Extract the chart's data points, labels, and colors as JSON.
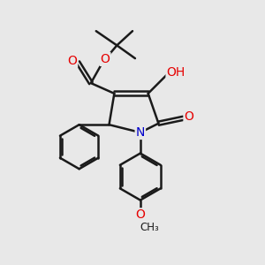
{
  "background_color": "#e8e8e8",
  "bond_color": "#1a1a1a",
  "bond_width": 1.8,
  "atom_colors": {
    "C": "#1a1a1a",
    "O": "#e60000",
    "N": "#0000cc",
    "H": "#5a8a8a"
  },
  "figsize": [
    3.0,
    3.0
  ],
  "dpi": 100,
  "xlim": [
    0,
    10
  ],
  "ylim": [
    0,
    10
  ]
}
